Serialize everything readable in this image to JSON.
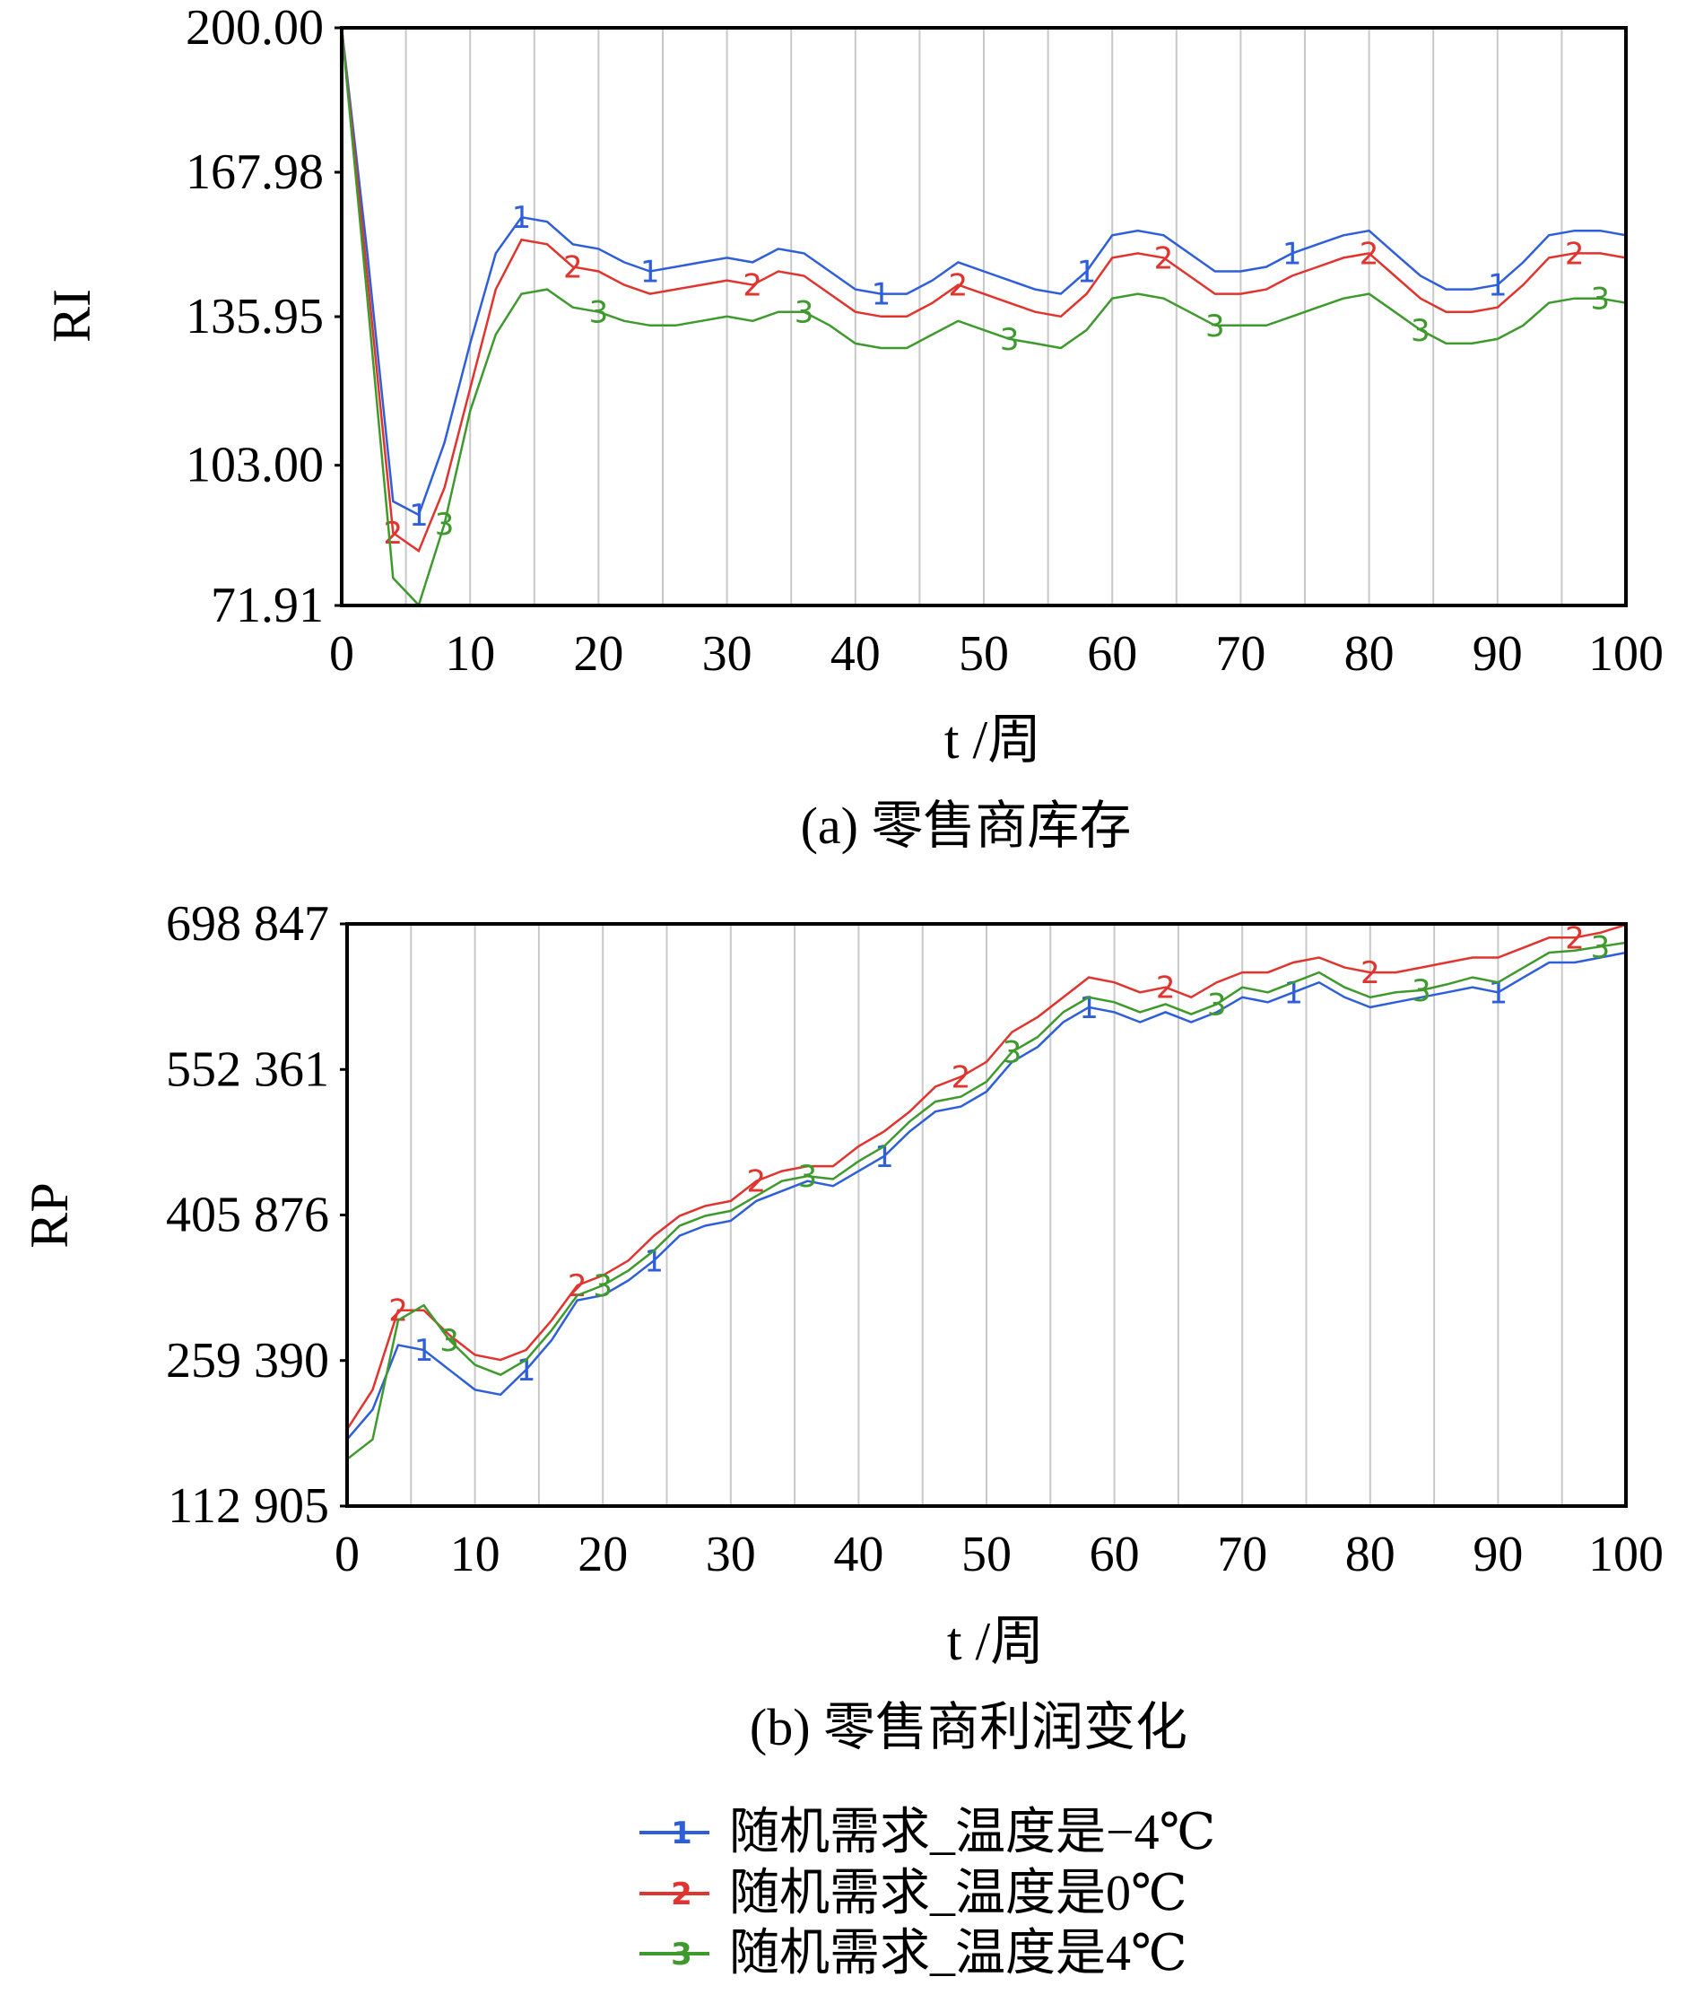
{
  "chart_data": [
    {
      "type": "line",
      "caption": "(a) 零售商库存",
      "ylabel": "RI",
      "xlabel": "t /周",
      "x": [
        0,
        2,
        4,
        6,
        8,
        10,
        12,
        14,
        16,
        18,
        20,
        22,
        24,
        26,
        28,
        30,
        32,
        34,
        36,
        38,
        40,
        42,
        44,
        46,
        48,
        50,
        52,
        54,
        56,
        58,
        60,
        62,
        64,
        66,
        68,
        70,
        72,
        74,
        76,
        78,
        80,
        82,
        84,
        86,
        88,
        90,
        92,
        94,
        96,
        98,
        100
      ],
      "xlim": [
        0,
        100
      ],
      "xticks": [
        0,
        10,
        20,
        30,
        40,
        50,
        60,
        70,
        80,
        90,
        100
      ],
      "ylim": [
        71.91,
        200
      ],
      "yticks": [
        {
          "value": 200,
          "label": "200.00"
        },
        167.98,
        135.95,
        {
          "value": 103,
          "label": "103.00"
        },
        71.91
      ],
      "grid": true,
      "series": [
        {
          "marker": "1",
          "color": "#2f5fd8",
          "values": [
            200,
            150,
            95,
            92,
            108,
            130,
            150,
            158,
            157,
            152,
            151,
            148,
            146,
            147,
            148,
            149,
            148,
            151,
            150,
            146,
            142,
            141,
            141,
            144,
            148,
            146,
            144,
            142,
            141,
            146,
            154,
            155,
            154,
            150,
            146,
            146,
            147,
            150,
            152,
            154,
            155,
            150,
            145,
            142,
            142,
            143,
            148,
            154,
            155,
            155,
            154
          ]
        },
        {
          "marker": "2",
          "color": "#e0342f",
          "values": [
            200,
            145,
            88,
            84,
            98,
            120,
            142,
            153,
            152,
            147,
            146,
            143,
            141,
            142,
            143,
            144,
            143,
            146,
            145,
            141,
            137,
            136,
            136,
            139,
            143,
            141,
            139,
            137,
            136,
            141,
            149,
            150,
            149,
            145,
            141,
            141,
            142,
            145,
            147,
            149,
            150,
            145,
            140,
            137,
            137,
            138,
            143,
            149,
            150,
            150,
            149
          ]
        },
        {
          "marker": "3",
          "color": "#3f9a2e",
          "values": [
            200,
            140,
            78,
            72,
            90,
            115,
            132,
            141,
            142,
            138,
            137,
            135,
            134,
            134,
            135,
            136,
            135,
            137,
            137,
            134,
            130,
            129,
            129,
            132,
            135,
            133,
            131,
            130,
            129,
            133,
            140,
            141,
            140,
            137,
            134,
            134,
            134,
            136,
            138,
            140,
            141,
            137,
            133,
            130,
            130,
            131,
            134,
            139,
            140,
            140,
            139
          ]
        }
      ]
    },
    {
      "type": "line",
      "caption": "(b) 零售商利润变化",
      "ylabel": "RP",
      "xlabel": "t /周",
      "x": [
        0,
        2,
        4,
        6,
        8,
        10,
        12,
        14,
        16,
        18,
        20,
        22,
        24,
        26,
        28,
        30,
        32,
        34,
        36,
        38,
        40,
        42,
        44,
        46,
        48,
        50,
        52,
        54,
        56,
        58,
        60,
        62,
        64,
        66,
        68,
        70,
        72,
        74,
        76,
        78,
        80,
        82,
        84,
        86,
        88,
        90,
        92,
        94,
        96,
        98,
        100
      ],
      "xlim": [
        0,
        100
      ],
      "xticks": [
        0,
        10,
        20,
        30,
        40,
        50,
        60,
        70,
        80,
        90,
        100
      ],
      "ylim": [
        112905,
        698847
      ],
      "yticks": [
        {
          "value": 698847,
          "label": "698 847"
        },
        {
          "value": 552361,
          "label": "552 361"
        },
        {
          "value": 405876,
          "label": "405 876"
        },
        {
          "value": 259390,
          "label": "259 390"
        },
        {
          "value": 112905,
          "label": "112 905"
        }
      ],
      "grid": true,
      "series": [
        {
          "marker": "1",
          "color": "#2f5fd8",
          "values": [
            180000,
            210000,
            275000,
            270000,
            250000,
            230000,
            225000,
            250000,
            280000,
            320000,
            325000,
            340000,
            360000,
            385000,
            395000,
            400000,
            420000,
            430000,
            440000,
            435000,
            450000,
            465000,
            490000,
            510000,
            515000,
            530000,
            560000,
            575000,
            600000,
            615000,
            610000,
            600000,
            610000,
            600000,
            610000,
            625000,
            620000,
            630000,
            640000,
            625000,
            615000,
            620000,
            625000,
            630000,
            635000,
            630000,
            645000,
            660000,
            660000,
            665000,
            670000
          ]
        },
        {
          "marker": "2",
          "color": "#e0342f",
          "values": [
            190000,
            230000,
            310000,
            310000,
            285000,
            265000,
            260000,
            270000,
            300000,
            335000,
            345000,
            360000,
            385000,
            405000,
            415000,
            420000,
            440000,
            450000,
            455000,
            455000,
            475000,
            490000,
            510000,
            535000,
            545000,
            560000,
            590000,
            605000,
            625000,
            645000,
            640000,
            630000,
            635000,
            625000,
            640000,
            650000,
            650000,
            660000,
            665000,
            655000,
            650000,
            650000,
            655000,
            660000,
            665000,
            665000,
            675000,
            685000,
            685000,
            690000,
            698000
          ]
        },
        {
          "marker": "3",
          "color": "#3f9a2e",
          "values": [
            160000,
            180000,
            300000,
            315000,
            280000,
            255000,
            245000,
            260000,
            290000,
            325000,
            335000,
            350000,
            370000,
            395000,
            405000,
            410000,
            425000,
            440000,
            445000,
            442000,
            460000,
            475000,
            500000,
            520000,
            525000,
            540000,
            570000,
            585000,
            610000,
            625000,
            620000,
            610000,
            618000,
            608000,
            618000,
            635000,
            630000,
            640000,
            650000,
            635000,
            625000,
            630000,
            632000,
            638000,
            645000,
            640000,
            655000,
            670000,
            672000,
            676000,
            680000
          ]
        }
      ]
    }
  ],
  "legend": [
    "随机需求_温度是−4℃",
    "随机需求_温度是0℃",
    "随机需求_温度是4℃"
  ]
}
